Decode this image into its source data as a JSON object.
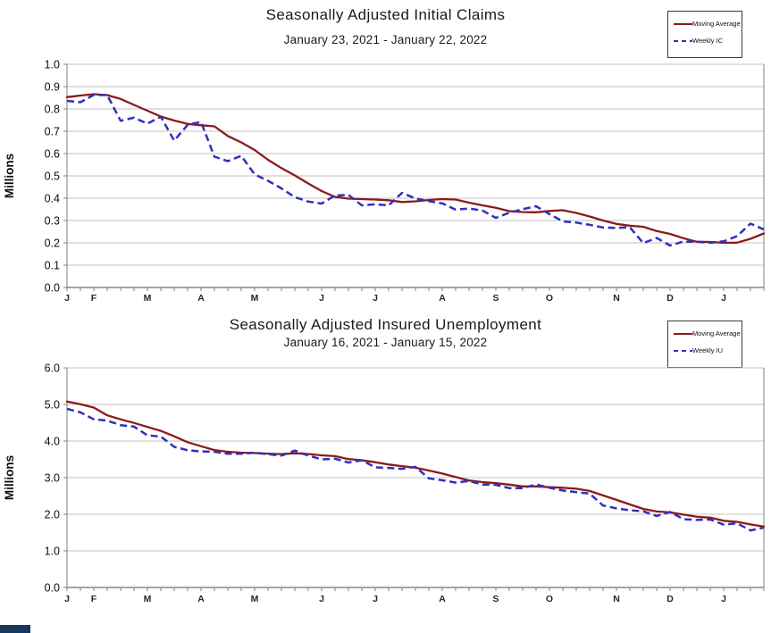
{
  "page": {
    "background": "#ffffff"
  },
  "colors": {
    "moving_average_line": "#8b1a1a",
    "weekly_line": "#3030be",
    "gridline": "#c0c0c0",
    "axis_box": "#808080",
    "axis_bottom": "#4a4a4a",
    "text": "#1a1a1a"
  },
  "chart_data": [
    {
      "type": "line",
      "title": "Seasonally Adjusted Initial Claims",
      "subtitle": "January 23, 2021 - January 22, 2022",
      "ylabel": "Millions",
      "ylim": [
        0.0,
        1.0
      ],
      "ytick_step": 0.1,
      "ytick_labels": [
        "0.0",
        "0.1",
        "0.2",
        "0.3",
        "0.4",
        "0.5",
        "0.6",
        "0.7",
        "0.8",
        "0.9",
        "1.0"
      ],
      "xtick_labels": [
        "J",
        "F",
        "M",
        "A",
        "M",
        "J",
        "J",
        "A",
        "S",
        "O",
        "N",
        "D",
        "J"
      ],
      "month_week_index": [
        0,
        2,
        6,
        10,
        14,
        19,
        23,
        28,
        32,
        36,
        41,
        45,
        49
      ],
      "grid": true,
      "legend_position": "top-right",
      "series": [
        {
          "name": "Moving Average",
          "color": "#8b1a1a",
          "dash": "solid",
          "values": [
            0.853,
            0.86,
            0.866,
            0.862,
            0.845,
            0.818,
            0.792,
            0.766,
            0.748,
            0.733,
            0.727,
            0.722,
            0.679,
            0.65,
            0.616,
            0.572,
            0.535,
            0.502,
            0.466,
            0.432,
            0.406,
            0.398,
            0.396,
            0.394,
            0.391,
            0.383,
            0.386,
            0.392,
            0.396,
            0.394,
            0.38,
            0.368,
            0.357,
            0.342,
            0.338,
            0.337,
            0.343,
            0.346,
            0.334,
            0.318,
            0.3,
            0.285,
            0.277,
            0.272,
            0.253,
            0.24,
            0.221,
            0.205,
            0.204,
            0.2,
            0.201,
            0.218,
            0.242
          ]
        },
        {
          "name": "Weekly IC",
          "color": "#3030be",
          "dash": "dashed",
          "values": [
            0.836,
            0.83,
            0.863,
            0.862,
            0.747,
            0.761,
            0.734,
            0.765,
            0.658,
            0.729,
            0.742,
            0.586,
            0.566,
            0.59,
            0.507,
            0.478,
            0.444,
            0.405,
            0.385,
            0.376,
            0.412,
            0.415,
            0.368,
            0.373,
            0.368,
            0.424,
            0.399,
            0.387,
            0.377,
            0.349,
            0.354,
            0.345,
            0.312,
            0.335,
            0.351,
            0.364,
            0.329,
            0.296,
            0.291,
            0.281,
            0.269,
            0.267,
            0.27,
            0.199,
            0.222,
            0.188,
            0.206,
            0.205,
            0.2,
            0.207,
            0.23,
            0.286,
            0.26
          ]
        }
      ]
    },
    {
      "type": "line",
      "title": "Seasonally Adjusted Insured Unemployment",
      "subtitle": "January 16, 2021 - January 15, 2022",
      "ylabel": "Millions",
      "ylim": [
        0.0,
        6.0
      ],
      "ytick_step": 1.0,
      "ytick_labels": [
        "0.0",
        "1.0",
        "2.0",
        "3.0",
        "4.0",
        "5.0",
        "6.0"
      ],
      "xtick_labels": [
        "J",
        "F",
        "M",
        "A",
        "M",
        "J",
        "J",
        "A",
        "S",
        "O",
        "N",
        "D",
        "J"
      ],
      "month_week_index": [
        0,
        2,
        6,
        10,
        14,
        19,
        23,
        28,
        32,
        36,
        41,
        45,
        49
      ],
      "grid": true,
      "legend_position": "top-right",
      "series": [
        {
          "name": "Moving Average",
          "color": "#8b1a1a",
          "dash": "solid",
          "values": [
            5.08,
            5.005,
            4.915,
            4.703,
            4.593,
            4.495,
            4.386,
            4.277,
            4.129,
            3.968,
            3.858,
            3.754,
            3.707,
            3.683,
            3.673,
            3.656,
            3.644,
            3.665,
            3.646,
            3.61,
            3.589,
            3.508,
            3.476,
            3.421,
            3.358,
            3.315,
            3.271,
            3.196,
            3.112,
            3.018,
            2.921,
            2.879,
            2.848,
            2.81,
            2.761,
            2.761,
            2.741,
            2.725,
            2.697,
            2.636,
            2.514,
            2.392,
            2.268,
            2.147,
            2.076,
            2.052,
            1.991,
            1.932,
            1.908,
            1.822,
            1.793,
            1.722,
            1.666
          ]
        },
        {
          "name": "Weekly IU",
          "color": "#3030be",
          "dash": "dashed",
          "values": [
            4.878,
            4.785,
            4.592,
            4.558,
            4.435,
            4.394,
            4.157,
            4.123,
            3.841,
            3.75,
            3.717,
            3.708,
            3.652,
            3.653,
            3.68,
            3.64,
            3.602,
            3.738,
            3.602,
            3.499,
            3.517,
            3.413,
            3.475,
            3.28,
            3.265,
            3.241,
            3.296,
            2.98,
            2.93,
            2.866,
            2.908,
            2.811,
            2.805,
            2.714,
            2.715,
            2.811,
            2.725,
            2.649,
            2.603,
            2.565,
            2.239,
            2.16,
            2.109,
            2.08,
            1.954,
            2.063,
            1.867,
            1.845,
            1.856,
            1.718,
            1.753,
            1.559,
            1.635
          ]
        }
      ]
    }
  ]
}
